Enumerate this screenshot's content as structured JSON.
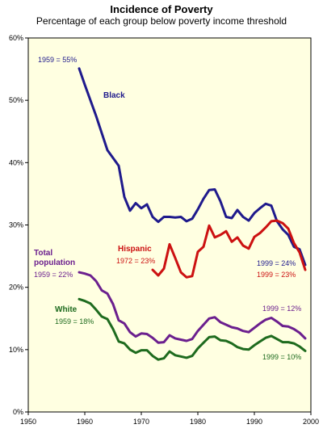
{
  "chart_data": {
    "type": "line",
    "title": "Incidence of Poverty",
    "subtitle": "Percentage of each group below poverty income threshold",
    "xlabel": "",
    "ylabel": "",
    "xlim": [
      1950,
      2000
    ],
    "ylim": [
      0,
      60
    ],
    "x_ticks": [
      "1950",
      "1960",
      "1970",
      "1980",
      "1990",
      "2000"
    ],
    "y_ticks": [
      "0%",
      "10%",
      "20%",
      "30%",
      "40%",
      "50%",
      "60%"
    ],
    "grid": false,
    "background": "#FFFFE1",
    "series": [
      {
        "name": "Black",
        "color": "#1F1A8C",
        "points": [
          [
            1959,
            55.1
          ],
          [
            1960,
            52.5
          ],
          [
            1962,
            47.5
          ],
          [
            1964,
            42
          ],
          [
            1966,
            39.5
          ],
          [
            1967,
            34.5
          ],
          [
            1968,
            32.3
          ],
          [
            1969,
            33.5
          ],
          [
            1970,
            32.7
          ],
          [
            1971,
            33.3
          ],
          [
            1972,
            31.3
          ],
          [
            1973,
            30.5
          ],
          [
            1974,
            31.3
          ],
          [
            1975,
            31.3
          ],
          [
            1976,
            31.2
          ],
          [
            1977,
            31.3
          ],
          [
            1978,
            30.6
          ],
          [
            1979,
            31
          ],
          [
            1980,
            32.5
          ],
          [
            1981,
            34.2
          ],
          [
            1982,
            35.6
          ],
          [
            1983,
            35.7
          ],
          [
            1984,
            33.8
          ],
          [
            1985,
            31.3
          ],
          [
            1986,
            31.1
          ],
          [
            1987,
            32.4
          ],
          [
            1988,
            31.3
          ],
          [
            1989,
            30.7
          ],
          [
            1990,
            31.9
          ],
          [
            1991,
            32.7
          ],
          [
            1992,
            33.4
          ],
          [
            1993,
            33.1
          ],
          [
            1994,
            30.6
          ],
          [
            1995,
            29.3
          ],
          [
            1996,
            28.4
          ],
          [
            1997,
            26.5
          ],
          [
            1998,
            26.1
          ],
          [
            1999,
            23.6
          ]
        ]
      },
      {
        "name": "Hispanic",
        "color": "#CC1111",
        "points": [
          [
            1972,
            22.8
          ],
          [
            1973,
            21.9
          ],
          [
            1974,
            23.0
          ],
          [
            1975,
            26.9
          ],
          [
            1976,
            24.7
          ],
          [
            1977,
            22.4
          ],
          [
            1978,
            21.6
          ],
          [
            1979,
            21.8
          ],
          [
            1980,
            25.7
          ],
          [
            1981,
            26.5
          ],
          [
            1982,
            29.9
          ],
          [
            1983,
            28.0
          ],
          [
            1984,
            28.4
          ],
          [
            1985,
            29.0
          ],
          [
            1986,
            27.3
          ],
          [
            1987,
            28.0
          ],
          [
            1988,
            26.7
          ],
          [
            1989,
            26.2
          ],
          [
            1990,
            28.1
          ],
          [
            1991,
            28.7
          ],
          [
            1992,
            29.6
          ],
          [
            1993,
            30.6
          ],
          [
            1994,
            30.7
          ],
          [
            1995,
            30.3
          ],
          [
            1996,
            29.4
          ],
          [
            1997,
            27.1
          ],
          [
            1998,
            25.6
          ],
          [
            1999,
            22.8
          ]
        ]
      },
      {
        "name": "Total population",
        "color": "#6B1F8E",
        "points": [
          [
            1959,
            22.4
          ],
          [
            1960,
            22.2
          ],
          [
            1961,
            21.9
          ],
          [
            1962,
            21.0
          ],
          [
            1963,
            19.5
          ],
          [
            1964,
            19.0
          ],
          [
            1965,
            17.3
          ],
          [
            1966,
            14.7
          ],
          [
            1967,
            14.2
          ],
          [
            1968,
            12.8
          ],
          [
            1969,
            12.1
          ],
          [
            1970,
            12.6
          ],
          [
            1971,
            12.5
          ],
          [
            1972,
            11.9
          ],
          [
            1973,
            11.1
          ],
          [
            1974,
            11.2
          ],
          [
            1975,
            12.3
          ],
          [
            1976,
            11.8
          ],
          [
            1977,
            11.6
          ],
          [
            1978,
            11.4
          ],
          [
            1979,
            11.7
          ],
          [
            1980,
            13.0
          ],
          [
            1981,
            14.0
          ],
          [
            1982,
            15.0
          ],
          [
            1983,
            15.2
          ],
          [
            1984,
            14.4
          ],
          [
            1985,
            14.0
          ],
          [
            1986,
            13.6
          ],
          [
            1987,
            13.4
          ],
          [
            1988,
            13.0
          ],
          [
            1989,
            12.8
          ],
          [
            1990,
            13.5
          ],
          [
            1991,
            14.2
          ],
          [
            1992,
            14.8
          ],
          [
            1993,
            15.1
          ],
          [
            1994,
            14.5
          ],
          [
            1995,
            13.8
          ],
          [
            1996,
            13.7
          ],
          [
            1997,
            13.3
          ],
          [
            1998,
            12.7
          ],
          [
            1999,
            11.8
          ]
        ]
      },
      {
        "name": "White",
        "color": "#1E6B1E",
        "points": [
          [
            1959,
            18.1
          ],
          [
            1960,
            17.8
          ],
          [
            1961,
            17.4
          ],
          [
            1962,
            16.4
          ],
          [
            1963,
            15.3
          ],
          [
            1964,
            14.9
          ],
          [
            1965,
            13.3
          ],
          [
            1966,
            11.3
          ],
          [
            1967,
            11.0
          ],
          [
            1968,
            10.0
          ],
          [
            1969,
            9.5
          ],
          [
            1970,
            9.9
          ],
          [
            1971,
            9.9
          ],
          [
            1972,
            9.0
          ],
          [
            1973,
            8.4
          ],
          [
            1974,
            8.6
          ],
          [
            1975,
            9.7
          ],
          [
            1976,
            9.1
          ],
          [
            1977,
            8.9
          ],
          [
            1978,
            8.7
          ],
          [
            1979,
            9.0
          ],
          [
            1980,
            10.2
          ],
          [
            1981,
            11.1
          ],
          [
            1982,
            12.0
          ],
          [
            1983,
            12.1
          ],
          [
            1984,
            11.5
          ],
          [
            1985,
            11.4
          ],
          [
            1986,
            11.0
          ],
          [
            1987,
            10.4
          ],
          [
            1988,
            10.1
          ],
          [
            1989,
            10.0
          ],
          [
            1990,
            10.7
          ],
          [
            1991,
            11.3
          ],
          [
            1992,
            11.9
          ],
          [
            1993,
            12.2
          ],
          [
            1994,
            11.7
          ],
          [
            1995,
            11.2
          ],
          [
            1996,
            11.2
          ],
          [
            1997,
            11.0
          ],
          [
            1998,
            10.5
          ],
          [
            1999,
            9.8
          ]
        ]
      }
    ],
    "annotations": {
      "black_name": "Black",
      "black_1959": "1959 = 55%",
      "black_1999": "1999 = 24%",
      "hispanic_name": "Hispanic",
      "hispanic_1972": "1972 = 23%",
      "hispanic_1999": "1999 = 23%",
      "total_name_line1": "Total",
      "total_name_line2": "population",
      "total_1959": "1959 = 22%",
      "total_1999": "1999 = 12%",
      "white_name": "White",
      "white_1959": "1959 = 18%",
      "white_1999": "1999 = 10%"
    }
  }
}
